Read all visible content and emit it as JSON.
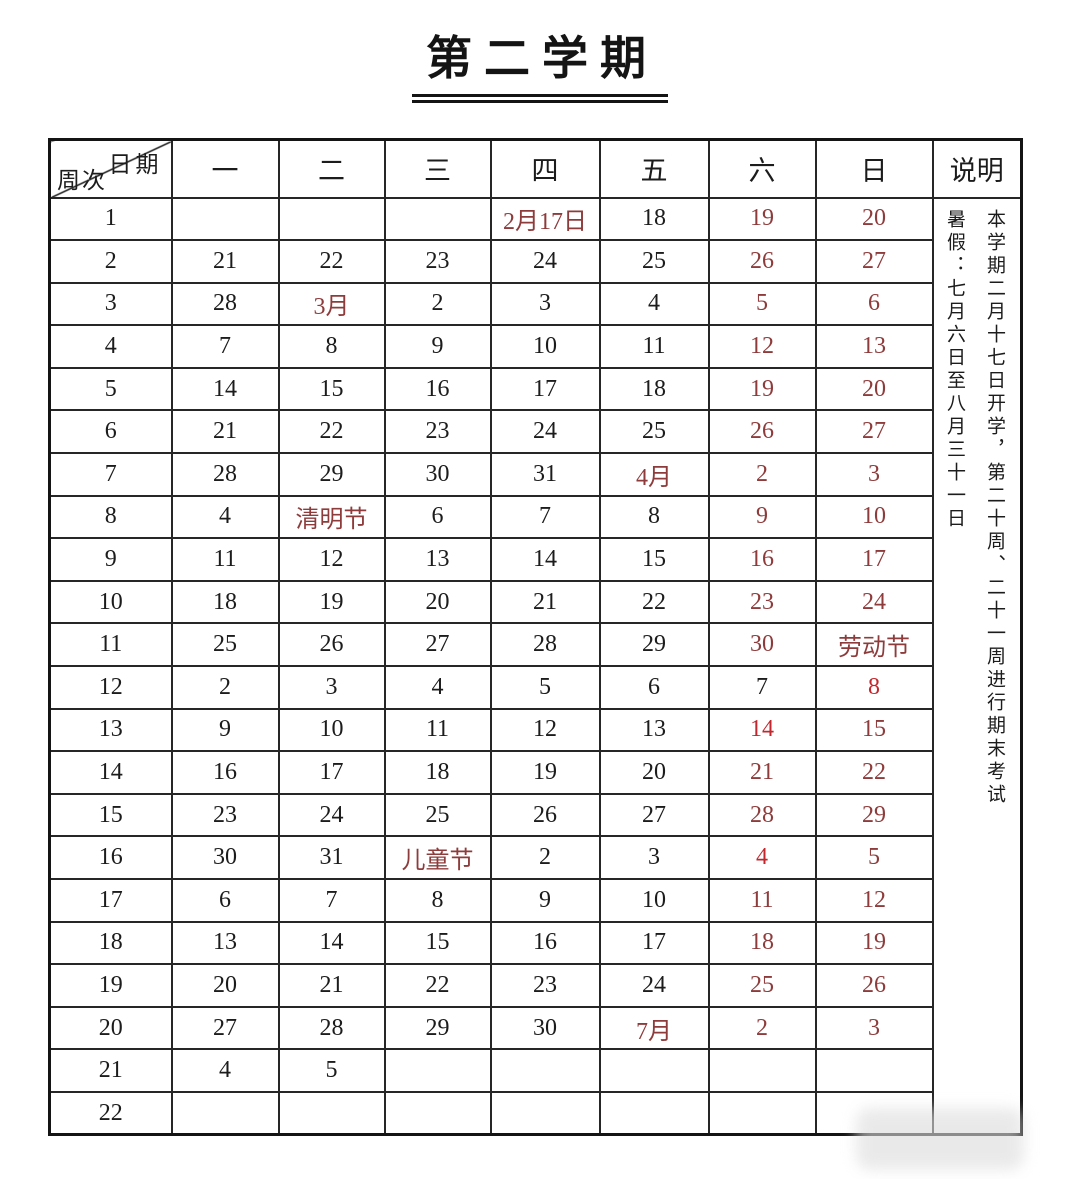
{
  "title": "第二学期",
  "colors": {
    "weekend_red": "#8e3b3b",
    "bright_red": "#c1272d",
    "ink": "#1c1c1c"
  },
  "table": {
    "corner": {
      "top": "日期",
      "bottom": "周次"
    },
    "day_headers": [
      "一",
      "二",
      "三",
      "四",
      "五",
      "六",
      "日"
    ],
    "notes_header": "说明",
    "notes_lines": [
      "本学期二月十七日开学，第二十周、二十一周进行期末考试",
      "暑假：七月六日至八月三十一日"
    ],
    "rows": [
      {
        "week": "1",
        "cells": [
          {
            "t": ""
          },
          {
            "t": ""
          },
          {
            "t": ""
          },
          {
            "t": "2月17日",
            "c": "red"
          },
          {
            "t": "18"
          },
          {
            "t": "19",
            "c": "red"
          },
          {
            "t": "20",
            "c": "red"
          }
        ]
      },
      {
        "week": "2",
        "cells": [
          {
            "t": "21"
          },
          {
            "t": "22"
          },
          {
            "t": "23"
          },
          {
            "t": "24"
          },
          {
            "t": "25"
          },
          {
            "t": "26",
            "c": "red"
          },
          {
            "t": "27",
            "c": "red"
          }
        ]
      },
      {
        "week": "3",
        "cells": [
          {
            "t": "28"
          },
          {
            "t": "3月",
            "c": "red"
          },
          {
            "t": "2"
          },
          {
            "t": "3"
          },
          {
            "t": "4"
          },
          {
            "t": "5",
            "c": "red"
          },
          {
            "t": "6",
            "c": "red"
          }
        ]
      },
      {
        "week": "4",
        "cells": [
          {
            "t": "7"
          },
          {
            "t": "8"
          },
          {
            "t": "9"
          },
          {
            "t": "10"
          },
          {
            "t": "11"
          },
          {
            "t": "12",
            "c": "red"
          },
          {
            "t": "13",
            "c": "red"
          }
        ]
      },
      {
        "week": "5",
        "cells": [
          {
            "t": "14"
          },
          {
            "t": "15"
          },
          {
            "t": "16"
          },
          {
            "t": "17"
          },
          {
            "t": "18"
          },
          {
            "t": "19",
            "c": "red"
          },
          {
            "t": "20",
            "c": "red"
          }
        ]
      },
      {
        "week": "6",
        "cells": [
          {
            "t": "21"
          },
          {
            "t": "22"
          },
          {
            "t": "23"
          },
          {
            "t": "24"
          },
          {
            "t": "25"
          },
          {
            "t": "26",
            "c": "red"
          },
          {
            "t": "27",
            "c": "red"
          }
        ]
      },
      {
        "week": "7",
        "cells": [
          {
            "t": "28"
          },
          {
            "t": "29"
          },
          {
            "t": "30"
          },
          {
            "t": "31"
          },
          {
            "t": "4月",
            "c": "red"
          },
          {
            "t": "2",
            "c": "red"
          },
          {
            "t": "3",
            "c": "red"
          }
        ]
      },
      {
        "week": "8",
        "cells": [
          {
            "t": "4"
          },
          {
            "t": "清明节",
            "c": "red"
          },
          {
            "t": "6"
          },
          {
            "t": "7"
          },
          {
            "t": "8"
          },
          {
            "t": "9",
            "c": "red"
          },
          {
            "t": "10",
            "c": "red"
          }
        ]
      },
      {
        "week": "9",
        "cells": [
          {
            "t": "11"
          },
          {
            "t": "12"
          },
          {
            "t": "13"
          },
          {
            "t": "14"
          },
          {
            "t": "15"
          },
          {
            "t": "16",
            "c": "red"
          },
          {
            "t": "17",
            "c": "red"
          }
        ]
      },
      {
        "week": "10",
        "cells": [
          {
            "t": "18"
          },
          {
            "t": "19"
          },
          {
            "t": "20"
          },
          {
            "t": "21"
          },
          {
            "t": "22"
          },
          {
            "t": "23",
            "c": "red"
          },
          {
            "t": "24",
            "c": "red"
          }
        ]
      },
      {
        "week": "11",
        "cells": [
          {
            "t": "25"
          },
          {
            "t": "26"
          },
          {
            "t": "27"
          },
          {
            "t": "28"
          },
          {
            "t": "29"
          },
          {
            "t": "30",
            "c": "red"
          },
          {
            "t": "劳动节",
            "c": "red"
          }
        ]
      },
      {
        "week": "12",
        "cells": [
          {
            "t": "2"
          },
          {
            "t": "3"
          },
          {
            "t": "4"
          },
          {
            "t": "5"
          },
          {
            "t": "6"
          },
          {
            "t": "7"
          },
          {
            "t": "8",
            "c": "bred"
          }
        ]
      },
      {
        "week": "13",
        "cells": [
          {
            "t": "9"
          },
          {
            "t": "10"
          },
          {
            "t": "11"
          },
          {
            "t": "12"
          },
          {
            "t": "13"
          },
          {
            "t": "14",
            "c": "bred"
          },
          {
            "t": "15",
            "c": "red"
          }
        ]
      },
      {
        "week": "14",
        "cells": [
          {
            "t": "16"
          },
          {
            "t": "17"
          },
          {
            "t": "18"
          },
          {
            "t": "19"
          },
          {
            "t": "20"
          },
          {
            "t": "21",
            "c": "red"
          },
          {
            "t": "22",
            "c": "red"
          }
        ]
      },
      {
        "week": "15",
        "cells": [
          {
            "t": "23"
          },
          {
            "t": "24"
          },
          {
            "t": "25"
          },
          {
            "t": "26"
          },
          {
            "t": "27"
          },
          {
            "t": "28",
            "c": "red"
          },
          {
            "t": "29",
            "c": "red"
          }
        ]
      },
      {
        "week": "16",
        "cells": [
          {
            "t": "30"
          },
          {
            "t": "31"
          },
          {
            "t": "儿童节",
            "c": "red"
          },
          {
            "t": "2"
          },
          {
            "t": "3"
          },
          {
            "t": "4",
            "c": "bred"
          },
          {
            "t": "5",
            "c": "red"
          }
        ]
      },
      {
        "week": "17",
        "cells": [
          {
            "t": "6"
          },
          {
            "t": "7"
          },
          {
            "t": "8"
          },
          {
            "t": "9"
          },
          {
            "t": "10"
          },
          {
            "t": "11",
            "c": "red"
          },
          {
            "t": "12",
            "c": "red"
          }
        ]
      },
      {
        "week": "18",
        "cells": [
          {
            "t": "13"
          },
          {
            "t": "14"
          },
          {
            "t": "15"
          },
          {
            "t": "16"
          },
          {
            "t": "17"
          },
          {
            "t": "18",
            "c": "red"
          },
          {
            "t": "19",
            "c": "red"
          }
        ]
      },
      {
        "week": "19",
        "cells": [
          {
            "t": "20"
          },
          {
            "t": "21"
          },
          {
            "t": "22"
          },
          {
            "t": "23"
          },
          {
            "t": "24"
          },
          {
            "t": "25",
            "c": "red"
          },
          {
            "t": "26",
            "c": "red"
          }
        ]
      },
      {
        "week": "20",
        "cells": [
          {
            "t": "27"
          },
          {
            "t": "28"
          },
          {
            "t": "29"
          },
          {
            "t": "30"
          },
          {
            "t": "7月",
            "c": "red"
          },
          {
            "t": "2",
            "c": "red"
          },
          {
            "t": "3",
            "c": "red"
          }
        ]
      },
      {
        "week": "21",
        "cells": [
          {
            "t": "4"
          },
          {
            "t": "5"
          },
          {
            "t": ""
          },
          {
            "t": ""
          },
          {
            "t": ""
          },
          {
            "t": ""
          },
          {
            "t": ""
          }
        ]
      },
      {
        "week": "22",
        "cells": [
          {
            "t": ""
          },
          {
            "t": ""
          },
          {
            "t": ""
          },
          {
            "t": ""
          },
          {
            "t": ""
          },
          {
            "t": ""
          },
          {
            "t": ""
          }
        ]
      }
    ]
  }
}
